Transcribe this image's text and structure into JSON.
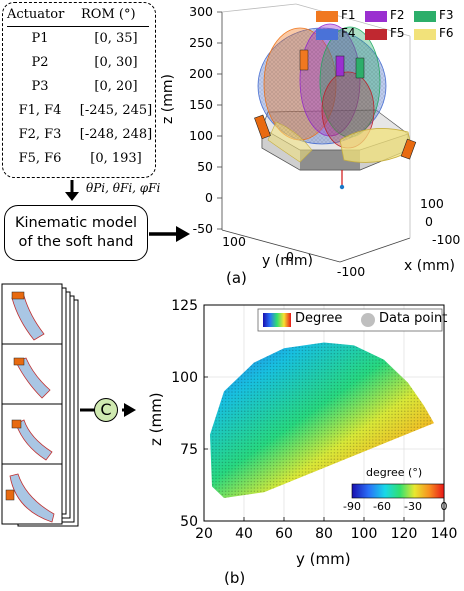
{
  "rom_table": {
    "header": [
      "Actuator",
      "ROM (°)"
    ],
    "rows": [
      [
        "P1",
        "[0, 35]"
      ],
      [
        "P2",
        "[0, 30]"
      ],
      [
        "P3",
        "[0, 20]"
      ],
      [
        "F1, F4",
        "[-245, 245]"
      ],
      [
        "F2, F3",
        "[-248, 248]"
      ],
      [
        "F5, F6",
        "[0, 193]"
      ]
    ]
  },
  "arrow_label": "θPi, θFi, φFi",
  "kinematic_box": {
    "line1": "Kinematic model",
    "line2": "of the soft hand"
  },
  "panel_a": {
    "label": "(a)",
    "z_axis_label": "z (mm)",
    "y_axis_label": "y (mm)",
    "x_axis_label": "x (mm)",
    "z_ticks": [
      "300",
      "250",
      "200",
      "150",
      "100",
      "50",
      "0",
      "-50"
    ],
    "y_ticks": [
      "100",
      "0",
      "-100"
    ],
    "x_ticks": [
      "100",
      "0",
      "-100"
    ],
    "legend": [
      {
        "name": "F1",
        "color": "#f07820"
      },
      {
        "name": "F2",
        "color": "#9a2fd0"
      },
      {
        "name": "F3",
        "color": "#2cae6a"
      },
      {
        "name": "F4",
        "color": "#4a72d8"
      },
      {
        "name": "F5",
        "color": "#c02830"
      },
      {
        "name": "F6",
        "color": "#f2e27a"
      }
    ]
  },
  "concat_symbol": "C",
  "panel_b": {
    "label": "(b)",
    "xlabel": "y (mm)",
    "ylabel": "z (mm)",
    "legend": {
      "colormap_label": "Degree",
      "points_label": "Data point"
    },
    "colorbar": {
      "title": "degree (°)",
      "ticks": [
        "-90",
        "-60",
        "-30",
        "0"
      ]
    }
  },
  "chart_data": {
    "type": "scatter",
    "xlabel": "y (mm)",
    "ylabel": "z (mm)",
    "xlim": [
      20,
      140
    ],
    "ylim": [
      50,
      125
    ],
    "x_ticks": [
      20,
      40,
      60,
      80,
      100,
      120,
      140
    ],
    "y_ticks": [
      50,
      75,
      100,
      125
    ],
    "color_range_deg": [
      -90,
      0
    ],
    "workspace_boundary": {
      "x": [
        50,
        30,
        24,
        23,
        30,
        45,
        60,
        80,
        95,
        110,
        122,
        130,
        135,
        50
      ],
      "y": [
        60,
        58,
        62,
        80,
        95,
        105,
        110,
        112,
        111,
        106,
        98,
        90,
        84,
        60
      ]
    }
  }
}
